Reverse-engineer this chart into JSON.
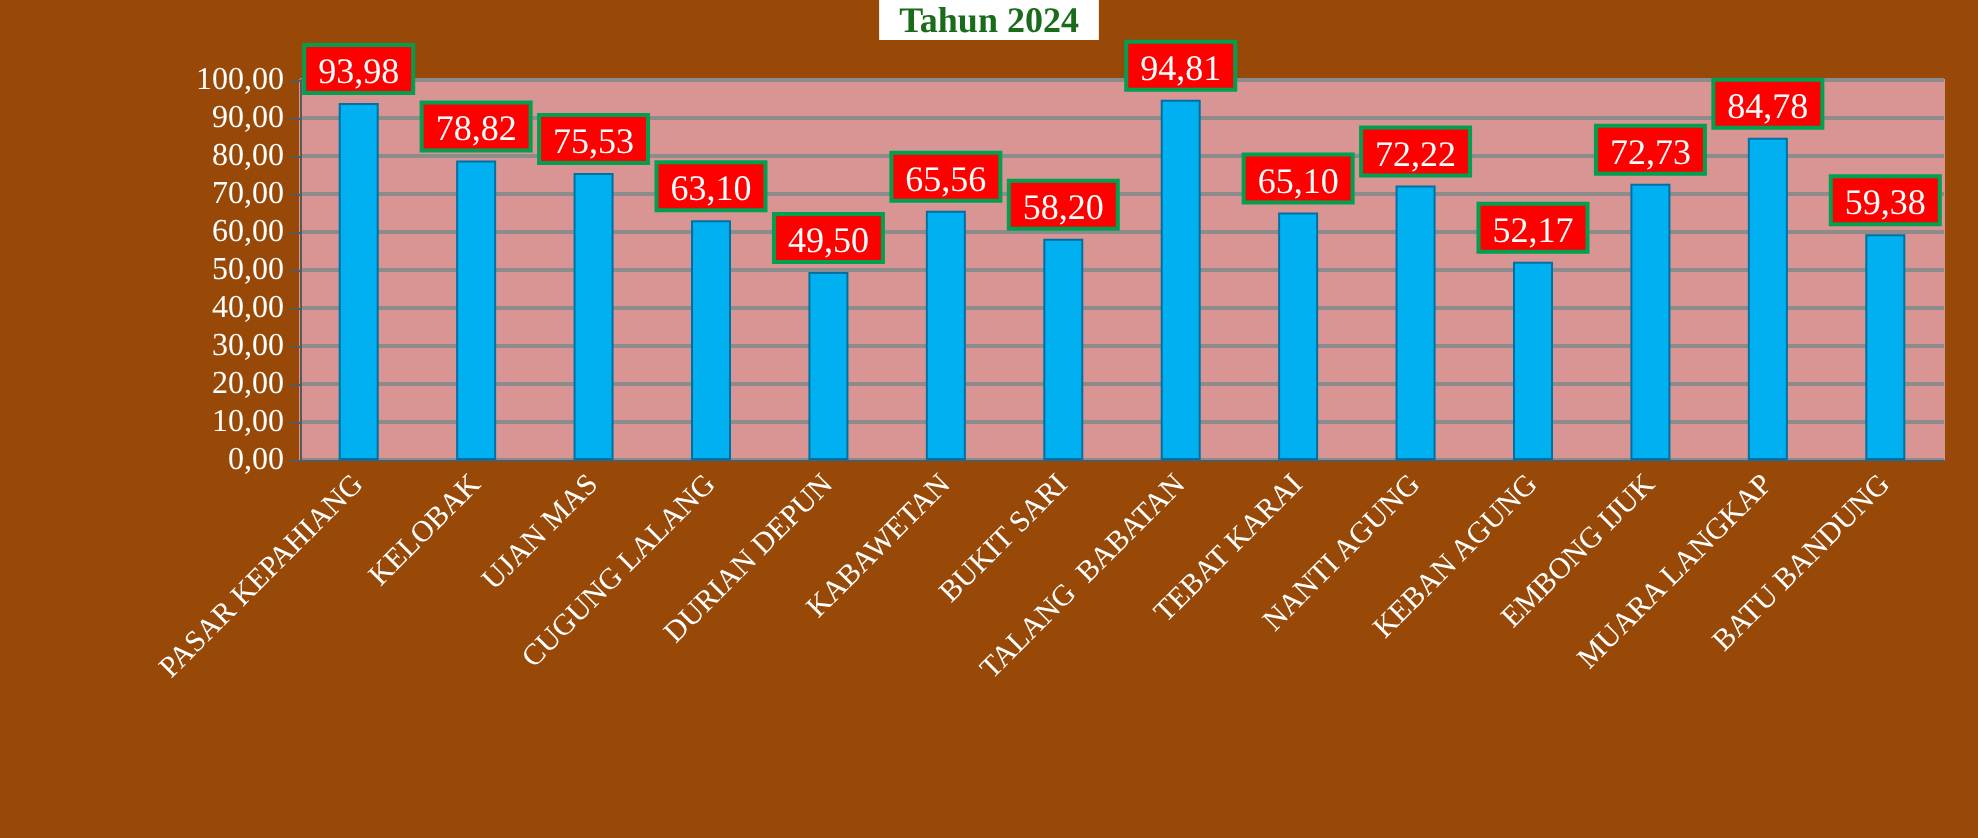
{
  "chart_data": {
    "type": "bar",
    "title": "Tahun 2024",
    "categories": [
      "PASAR KEPAHIANG",
      "KELOBAK",
      "UJAN MAS",
      "CUGUNG LALANG",
      "DURIAN DEPUN",
      "KABAWETAN",
      "BUKIT SARI",
      "TALANG  BABATAN",
      "TEBAT KARAI",
      "NANTI AGUNG",
      "KEBAN AGUNG",
      "EMBONG IJUK",
      "MUARA LANGKAP",
      "BATU BANDUNG"
    ],
    "values": [
      93.98,
      78.82,
      75.53,
      63.1,
      49.5,
      65.56,
      58.2,
      94.81,
      65.1,
      72.22,
      52.17,
      72.73,
      84.78,
      59.38
    ],
    "value_labels": [
      "93,98",
      "78,82",
      "75,53",
      "63,10",
      "49,50",
      "65,56",
      "58,20",
      "94,81",
      "65,10",
      "72,22",
      "52,17",
      "72,73",
      "84,78",
      "59,38"
    ],
    "color": "#00b0f0",
    "ylim": [
      0,
      100
    ],
    "yticks": [
      {
        "value": 0,
        "label": "0,00"
      },
      {
        "value": 10,
        "label": "10,00"
      },
      {
        "value": 20,
        "label": "20,00"
      },
      {
        "value": 30,
        "label": "30,00"
      },
      {
        "value": 40,
        "label": "40,00"
      },
      {
        "value": 50,
        "label": "50,00"
      },
      {
        "value": 60,
        "label": "60,00"
      },
      {
        "value": 70,
        "label": "70,00"
      },
      {
        "value": 80,
        "label": "80,00"
      },
      {
        "value": 90,
        "label": "90,00"
      },
      {
        "value": 100,
        "label": "100,00"
      }
    ],
    "grid": "y"
  }
}
